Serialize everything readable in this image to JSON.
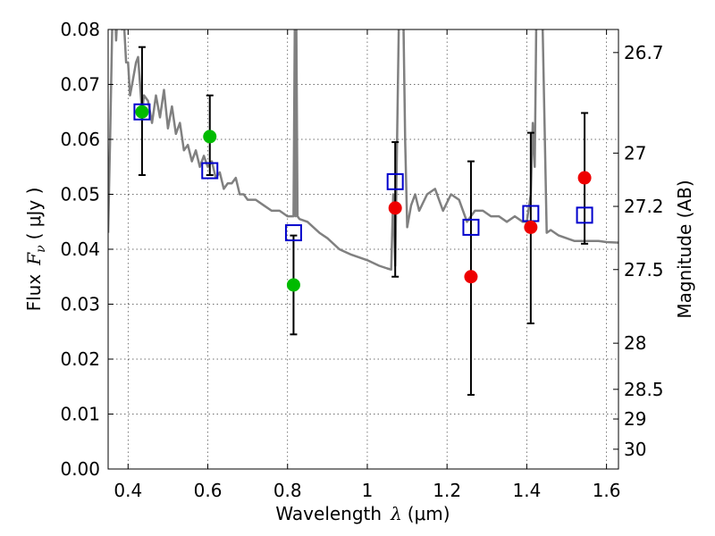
{
  "chart_data": {
    "type": "scatter",
    "title": "",
    "xlabel": "Wavelength",
    "xlabel_symbol": "λ",
    "xlabel_unit": "(μm)",
    "ylabel": "Flux",
    "ylabel_symbol": "F",
    "ylabel_subscript": "ν",
    "ylabel_unit": "( μJy )",
    "y2label": "Magnitude (AB)",
    "xlim": [
      0.35,
      1.63
    ],
    "ylim": [
      0.0,
      0.08
    ],
    "grid": true,
    "x_ticks": [
      0.4,
      0.6,
      0.8,
      1.0,
      1.2,
      1.4,
      1.6
    ],
    "x_tick_labels": [
      "0.4",
      "0.6",
      "0.8",
      "1",
      "1.2",
      "1.4",
      "1.6"
    ],
    "y_ticks": [
      0.0,
      0.01,
      0.02,
      0.03,
      0.04,
      0.05,
      0.06,
      0.07,
      0.08
    ],
    "y_tick_labels": [
      "0.00",
      "0.01",
      "0.02",
      "0.03",
      "0.04",
      "0.05",
      "0.06",
      "0.07",
      "0.08"
    ],
    "y2_ticks": [
      {
        "label": "26.7",
        "flux": 0.0758
      },
      {
        "label": "27",
        "flux": 0.0575
      },
      {
        "label": "27.2",
        "flux": 0.0478
      },
      {
        "label": "27.5",
        "flux": 0.0363
      },
      {
        "label": "28",
        "flux": 0.0229
      },
      {
        "label": "28.5",
        "flux": 0.0145
      },
      {
        "label": "29",
        "flux": 0.0091
      },
      {
        "label": "30",
        "flux": 0.0036
      }
    ],
    "series": [
      {
        "name": "model spectrum",
        "kind": "line",
        "color": "#808080",
        "x": [
          0.35,
          0.355,
          0.36,
          0.365,
          0.37,
          0.375,
          0.38,
          0.385,
          0.39,
          0.395,
          0.4,
          0.405,
          0.41,
          0.415,
          0.42,
          0.425,
          0.43,
          0.435,
          0.44,
          0.45,
          0.46,
          0.47,
          0.48,
          0.49,
          0.5,
          0.51,
          0.52,
          0.53,
          0.54,
          0.55,
          0.56,
          0.57,
          0.58,
          0.59,
          0.6,
          0.61,
          0.62,
          0.63,
          0.64,
          0.65,
          0.66,
          0.67,
          0.68,
          0.69,
          0.7,
          0.72,
          0.74,
          0.76,
          0.78,
          0.8,
          0.81,
          0.815,
          0.818,
          0.82,
          0.822,
          0.825,
          0.83,
          0.85,
          0.88,
          0.9,
          0.93,
          0.96,
          1.0,
          1.03,
          1.05,
          1.06,
          1.065,
          1.07,
          1.08,
          1.085,
          1.09,
          1.095,
          1.1,
          1.11,
          1.12,
          1.13,
          1.15,
          1.17,
          1.19,
          1.21,
          1.23,
          1.25,
          1.26,
          1.27,
          1.29,
          1.31,
          1.33,
          1.35,
          1.37,
          1.39,
          1.4,
          1.41,
          1.415,
          1.42,
          1.425,
          1.43,
          1.44,
          1.45,
          1.46,
          1.48,
          1.5,
          1.52,
          1.55,
          1.58,
          1.6,
          1.63
        ],
        "y": [
          0.043,
          0.06,
          0.08,
          0.09,
          0.078,
          0.085,
          0.09,
          0.08,
          0.081,
          0.074,
          0.074,
          0.068,
          0.07,
          0.072,
          0.074,
          0.075,
          0.07,
          0.065,
          0.068,
          0.067,
          0.063,
          0.068,
          0.064,
          0.069,
          0.062,
          0.066,
          0.061,
          0.063,
          0.058,
          0.059,
          0.056,
          0.058,
          0.055,
          0.057,
          0.055,
          0.056,
          0.053,
          0.054,
          0.051,
          0.052,
          0.052,
          0.053,
          0.05,
          0.05,
          0.049,
          0.049,
          0.048,
          0.047,
          0.047,
          0.046,
          0.046,
          0.046,
          0.08,
          0.046,
          0.08,
          0.046,
          0.0455,
          0.045,
          0.043,
          0.042,
          0.04,
          0.039,
          0.038,
          0.037,
          0.0365,
          0.0363,
          0.05,
          0.037,
          0.085,
          0.09,
          0.085,
          0.06,
          0.044,
          0.048,
          0.05,
          0.047,
          0.05,
          0.051,
          0.047,
          0.05,
          0.049,
          0.045,
          0.046,
          0.047,
          0.047,
          0.046,
          0.046,
          0.045,
          0.046,
          0.045,
          0.045,
          0.05,
          0.063,
          0.055,
          0.09,
          0.085,
          0.08,
          0.043,
          0.0435,
          0.0425,
          0.042,
          0.0415,
          0.0415,
          0.0415,
          0.0413,
          0.0412
        ]
      },
      {
        "name": "model band flux",
        "kind": "open-square",
        "color": "#0000cc",
        "x": [
          0.435,
          0.605,
          0.815,
          1.07,
          1.26,
          1.41,
          1.545
        ],
        "y": [
          0.065,
          0.0543,
          0.043,
          0.0523,
          0.044,
          0.0465,
          0.0462
        ]
      },
      {
        "name": "observed flux (green)",
        "kind": "filled-circle",
        "color": "#00bb00",
        "x": [
          0.435,
          0.605,
          0.815
        ],
        "y": [
          0.065,
          0.0605,
          0.0335
        ],
        "err_low": [
          0.0535,
          0.0535,
          0.0245
        ],
        "err_high": [
          0.0768,
          0.068,
          0.0425
        ]
      },
      {
        "name": "observed flux (red)",
        "kind": "filled-circle",
        "color": "#ee0000",
        "x": [
          1.07,
          1.26,
          1.41,
          1.545
        ],
        "y": [
          0.0475,
          0.035,
          0.044,
          0.053
        ],
        "err_low": [
          0.035,
          0.0135,
          0.0265,
          0.041
        ],
        "err_high": [
          0.0595,
          0.056,
          0.0612,
          0.0648
        ]
      }
    ]
  }
}
